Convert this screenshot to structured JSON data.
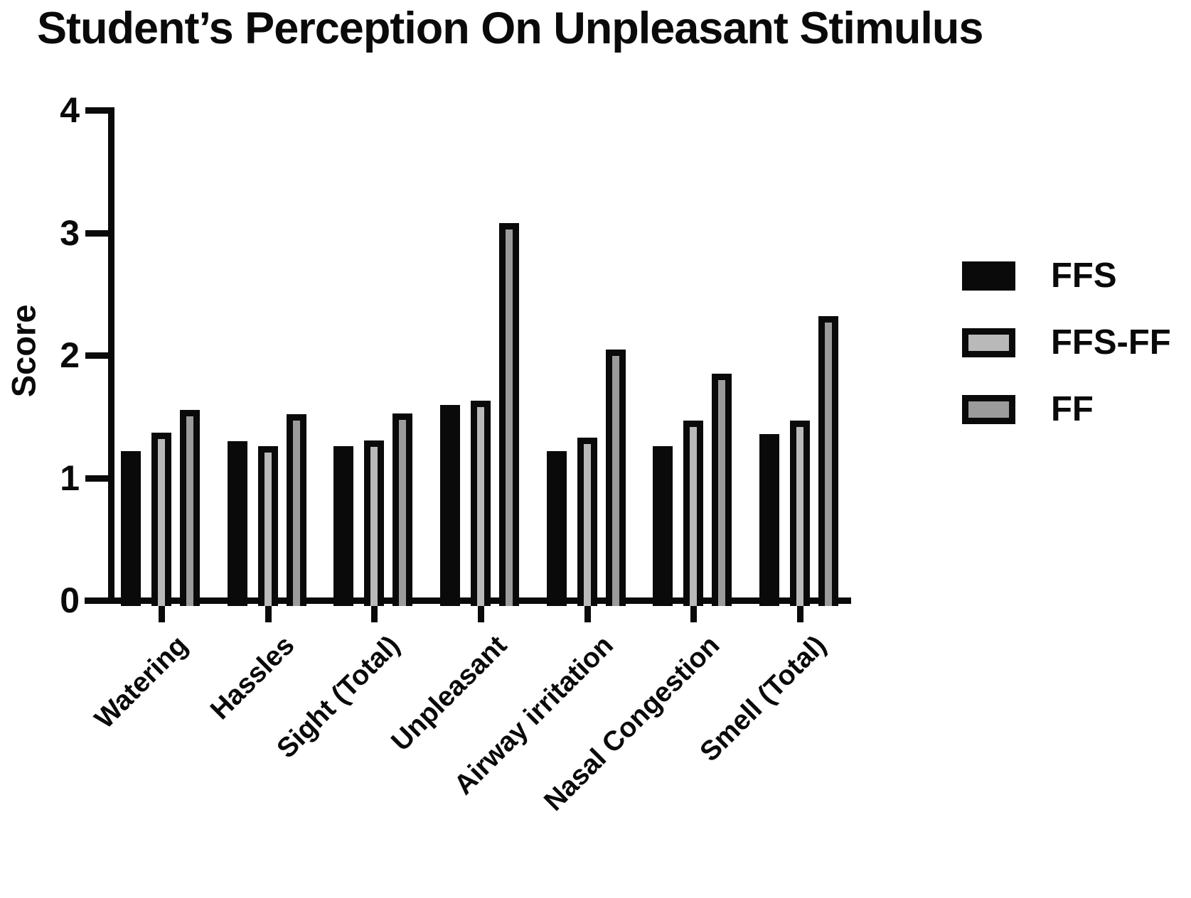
{
  "chart_data": {
    "type": "bar",
    "title": "Student’s Perception On Unpleasant Stimulus",
    "ylabel": "Score",
    "ylim": [
      0,
      4
    ],
    "yticks": [
      0,
      1,
      2,
      3,
      4
    ],
    "grid": false,
    "legend_position": "right-middle",
    "categories": [
      "Watering",
      "Hassles",
      "Sight (Total)",
      "Unpleasant",
      "Airway irritation",
      "Nasal Congestion",
      "Smell (Total)"
    ],
    "series": [
      {
        "name": "FFS",
        "style": "solid",
        "color": "#0a0a0a",
        "values": [
          1.17,
          1.25,
          1.21,
          1.55,
          1.17,
          1.21,
          1.31
        ]
      },
      {
        "name": "FFS-FF",
        "style": "outlined",
        "color": "#b9b9b9",
        "border_color": "#0a0a0a",
        "values": [
          1.32,
          1.21,
          1.26,
          1.58,
          1.28,
          1.42,
          1.42
        ]
      },
      {
        "name": "FF",
        "style": "outlined",
        "color": "#9b9b9b",
        "border_color": "#0a0a0a",
        "values": [
          1.51,
          1.47,
          1.48,
          3.03,
          2.0,
          1.8,
          2.27
        ]
      }
    ]
  }
}
